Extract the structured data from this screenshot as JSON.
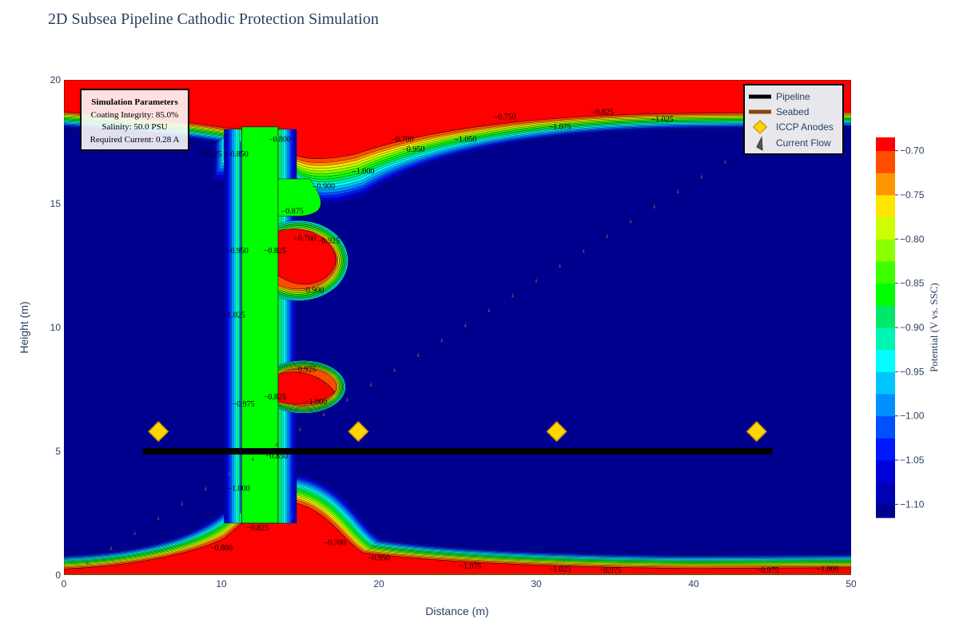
{
  "chart_data": {
    "type": "heatmap",
    "subtype": "filled-contour",
    "title": "2D Subsea Pipeline Cathodic Protection Simulation",
    "xlabel": "Distance (m)",
    "ylabel": "Height (m)",
    "xlim": [
      0,
      50
    ],
    "ylim": [
      0,
      20
    ],
    "x_ticks": [
      0,
      10,
      20,
      30,
      40,
      50
    ],
    "y_ticks": [
      0,
      5,
      10,
      15,
      20
    ],
    "grid": false,
    "colorbar": {
      "title": "Potential (V vs. SSC)",
      "range": [
        -1.115,
        -0.685
      ],
      "ticks": [
        -0.7,
        -0.75,
        -0.8,
        -0.85,
        -0.9,
        -0.95,
        -1.0,
        -1.05,
        -1.1
      ],
      "tick_labels": [
        "−0.70",
        "−0.75",
        "−0.80",
        "−0.85",
        "−0.90",
        "−0.95",
        "−1.00",
        "−1.05",
        "−1.10"
      ],
      "bands": [
        {
          "from": -1.115,
          "to": -1.1,
          "color": "#00008f"
        },
        {
          "from": -1.1,
          "to": -1.075,
          "color": "#0000b4"
        },
        {
          "from": -1.075,
          "to": -1.05,
          "color": "#0000d8"
        },
        {
          "from": -1.05,
          "to": -1.025,
          "color": "#0018ff"
        },
        {
          "from": -1.025,
          "to": -1.0,
          "color": "#0050ff"
        },
        {
          "from": -1.0,
          "to": -0.975,
          "color": "#0090ff"
        },
        {
          "from": -0.975,
          "to": -0.95,
          "color": "#00c4ff"
        },
        {
          "from": -0.95,
          "to": -0.925,
          "color": "#00ffff"
        },
        {
          "from": -0.925,
          "to": -0.9,
          "color": "#00f5b0"
        },
        {
          "from": -0.9,
          "to": -0.875,
          "color": "#00e86a"
        },
        {
          "from": -0.875,
          "to": -0.85,
          "color": "#00ff00"
        },
        {
          "from": -0.85,
          "to": -0.825,
          "color": "#3cff00"
        },
        {
          "from": -0.825,
          "to": -0.8,
          "color": "#8cff00"
        },
        {
          "from": -0.8,
          "to": -0.775,
          "color": "#ccff00"
        },
        {
          "from": -0.775,
          "to": -0.75,
          "color": "#ffe600"
        },
        {
          "from": -0.75,
          "to": -0.725,
          "color": "#ff9500"
        },
        {
          "from": -0.725,
          "to": -0.7,
          "color": "#ff4d00"
        },
        {
          "from": -0.7,
          "to": -0.685,
          "color": "#ff0000"
        }
      ]
    },
    "background_region": {
      "potential": -1.11,
      "color": "#00008f"
    },
    "regions": [
      {
        "name": "top unprotected band",
        "potential": -0.69
      },
      {
        "name": "bottom unprotected band",
        "potential": -0.69
      },
      {
        "name": "vertical transition strip",
        "x_range": [
          11.3,
          13.6
        ],
        "y_range": [
          2.1,
          18.1
        ],
        "potential": -0.86
      },
      {
        "name": "undercut pocket upper",
        "center": [
          14.5,
          12.9
        ],
        "potential": -0.69
      },
      {
        "name": "undercut pocket lower",
        "center": [
          14.5,
          7.5
        ],
        "potential": -0.69
      },
      {
        "name": "bottom mound",
        "center": [
          15.2,
          1.5
        ],
        "potential": -0.69
      }
    ],
    "contour_labels": [
      {
        "text": "−0.750",
        "x": 28.0,
        "y": 18.5
      },
      {
        "text": "−0.825",
        "x": 34.2,
        "y": 18.7
      },
      {
        "text": "−0.700",
        "x": 21.5,
        "y": 17.6
      },
      {
        "text": "−0.950",
        "x": 22.2,
        "y": 17.2
      },
      {
        "text": "−1.050",
        "x": 25.5,
        "y": 17.6
      },
      {
        "text": "−1.075",
        "x": 31.5,
        "y": 18.1
      },
      {
        "text": "−1.025",
        "x": 38.0,
        "y": 18.4
      },
      {
        "text": "−0.775",
        "x": 48.0,
        "y": 18.7
      },
      {
        "text": "−0.925",
        "x": 9.3,
        "y": 17.0
      },
      {
        "text": "−0.850",
        "x": 11.0,
        "y": 17.0
      },
      {
        "text": "−0.800",
        "x": 13.7,
        "y": 17.6
      },
      {
        "text": "−1.000",
        "x": 19.0,
        "y": 16.3
      },
      {
        "text": "−0.900",
        "x": 16.5,
        "y": 15.7
      },
      {
        "text": "−0.875",
        "x": 14.5,
        "y": 14.7
      },
      {
        "text": "−0.825",
        "x": 13.4,
        "y": 13.1
      },
      {
        "text": "−0.700",
        "x": 15.3,
        "y": 13.6
      },
      {
        "text": "−0.925",
        "x": 16.8,
        "y": 13.5
      },
      {
        "text": "−0.950",
        "x": 11.0,
        "y": 13.1
      },
      {
        "text": "−0.900",
        "x": 15.8,
        "y": 11.5
      },
      {
        "text": "−1.025",
        "x": 10.8,
        "y": 10.5
      },
      {
        "text": "−0.925",
        "x": 15.3,
        "y": 8.3
      },
      {
        "text": "−0.825",
        "x": 13.4,
        "y": 7.2
      },
      {
        "text": "−1.000",
        "x": 16.0,
        "y": 7.0
      },
      {
        "text": "−0.975",
        "x": 11.4,
        "y": 6.9
      },
      {
        "text": "−0.850",
        "x": 13.5,
        "y": 4.8
      },
      {
        "text": "−1.000",
        "x": 11.1,
        "y": 3.5
      },
      {
        "text": "−0.825",
        "x": 12.3,
        "y": 1.9
      },
      {
        "text": "−0.800",
        "x": 10.0,
        "y": 1.1
      },
      {
        "text": "−0.700",
        "x": 17.2,
        "y": 1.3
      },
      {
        "text": "−0.950",
        "x": 20.0,
        "y": 0.7
      },
      {
        "text": "−1.075",
        "x": 25.8,
        "y": 0.35
      },
      {
        "text": "−1.025",
        "x": 31.5,
        "y": 0.25
      },
      {
        "text": "−0.975",
        "x": 34.7,
        "y": 0.2
      },
      {
        "text": "−0.975",
        "x": 44.7,
        "y": 0.2
      },
      {
        "text": "−1.000",
        "x": 48.5,
        "y": 0.25
      }
    ],
    "series": [
      {
        "name": "Pipeline",
        "type": "line",
        "color": "#000000",
        "x": [
          5,
          45
        ],
        "y": [
          5,
          5
        ]
      },
      {
        "name": "Seabed",
        "type": "line",
        "color": "#8b4513",
        "x": [
          0,
          50
        ],
        "y": [
          0,
          0
        ]
      },
      {
        "name": "ICCP Anodes",
        "type": "scatter",
        "marker": "diamond",
        "color": "#ffd700",
        "x": [
          6,
          18.7,
          31.3,
          44
        ],
        "y": [
          5.8,
          5.8,
          5.8,
          5.8
        ]
      },
      {
        "name": "Current Flow",
        "type": "scatter",
        "marker": "triangle",
        "color": "#555555",
        "x": [
          1.5,
          3.0,
          4.5,
          6.0,
          7.5,
          9.0,
          10.5,
          12.0,
          13.5,
          15.0,
          16.5,
          18.0,
          19.5,
          21.0,
          22.5,
          24.0,
          25.5,
          27.0,
          28.5,
          30.0,
          31.5,
          33.0,
          34.5,
          36.0,
          37.5,
          39.0,
          40.5,
          42.0,
          43.5,
          45.0,
          46.5,
          48.0,
          49.7
        ],
        "y": [
          0.5,
          1.1,
          1.7,
          2.3,
          2.9,
          3.5,
          4.1,
          4.7,
          5.3,
          5.9,
          6.5,
          7.1,
          7.7,
          8.3,
          8.9,
          9.5,
          10.1,
          10.7,
          11.3,
          11.9,
          12.5,
          13.1,
          13.7,
          14.3,
          14.9,
          15.5,
          16.1,
          16.7,
          17.3,
          17.9,
          18.5,
          19.1,
          19.7
        ]
      }
    ],
    "legend": {
      "position": "top-right",
      "items": [
        "Pipeline",
        "Seabed",
        "ICCP Anodes",
        "Current Flow"
      ]
    },
    "annotation": {
      "position": "top-left",
      "title": "Simulation Parameters",
      "lines": [
        "Coating Integrity: 85.0%",
        "Salinity: 50.0 PSU",
        "Required Current: 0.28 A"
      ]
    }
  }
}
